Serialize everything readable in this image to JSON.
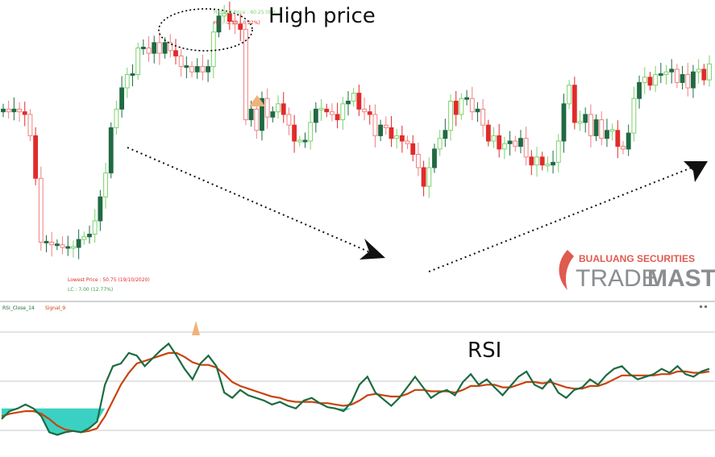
{
  "annotations": {
    "high_price": "High price",
    "rsi": "RSI",
    "high_price_detail": "Highest Price : 60.25 (09/…",
    "hc": "HC : -2.50 (-0.22%)",
    "lowest_price_detail": "Lowest Price : 50.75 (19/10/2020)",
    "lc": "LC : 7.00 (12.77%)"
  },
  "indicator_legend": {
    "rsi_label": "RSI_Close_14",
    "signal_label": "Signal_9"
  },
  "watermark": {
    "top": "BUALUANG SECURITIES",
    "main_a": "TRADE",
    "main_b": "MASTER"
  },
  "colors": {
    "bull_fill": "#1f6a43",
    "bull_hollow": "#7ad36a",
    "bear_fill": "#e22a2a",
    "bear_hollow": "#f08080",
    "rsi_line": "#1d6b40",
    "signal_line": "#c8440f",
    "oversold_fill": "#3bd1c2",
    "marker_triangle": "#f0b27a",
    "watermark_red": "#e05a4f",
    "watermark_gray": "#8a8d91"
  },
  "chart_data": [
    {
      "type": "candlestick",
      "title": "",
      "series": [
        {
          "name": "",
          "close": [
            0.62,
            0.61,
            0.62,
            0.61,
            0.6,
            0.52,
            0.36,
            0.12,
            0.12,
            0.11,
            0.11,
            0.1,
            0.1,
            0.1,
            0.13,
            0.14,
            0.15,
            0.2,
            0.29,
            0.38,
            0.55,
            0.62,
            0.7,
            0.75,
            0.75,
            0.85,
            0.85,
            0.83,
            0.87,
            0.83,
            0.87,
            0.84,
            0.82,
            0.78,
            0.78,
            0.76,
            0.78,
            0.76,
            0.78,
            0.91,
            0.97,
            0.98,
            0.95,
            0.94,
            0.92,
            0.58,
            0.62,
            0.54,
            0.66,
            0.59,
            0.61,
            0.64,
            0.6,
            0.56,
            0.5,
            0.5,
            0.5,
            0.57,
            0.62,
            0.62,
            0.61,
            0.6,
            0.58,
            0.64,
            0.65,
            0.68,
            0.62,
            0.61,
            0.6,
            0.52,
            0.56,
            0.55,
            0.51,
            0.52,
            0.5,
            0.49,
            0.45,
            0.4,
            0.33,
            0.4,
            0.47,
            0.51,
            0.54,
            0.65,
            0.6,
            0.66,
            0.66,
            0.61,
            0.62,
            0.56,
            0.5,
            0.52,
            0.47,
            0.49,
            0.5,
            0.48,
            0.51,
            0.44,
            0.41,
            0.44,
            0.41,
            0.41,
            0.42,
            0.5,
            0.64,
            0.71,
            0.57,
            0.57,
            0.6,
            0.52,
            0.58,
            0.51,
            0.54,
            0.54,
            0.48,
            0.47,
            0.53,
            0.66,
            0.72,
            0.74,
            0.71,
            0.75,
            0.75,
            0.76,
            0.77,
            0.72,
            0.75,
            0.7,
            0.76,
            0.77,
            0.73,
            0.79
          ],
          "color_note": "alternating filled / hollow candles"
        }
      ],
      "y_range": [
        0,
        1
      ],
      "grid": false
    },
    {
      "type": "line",
      "title": "",
      "series": [
        {
          "name": "RSI_Close_14",
          "values": [
            22,
            28,
            30,
            33,
            30,
            24,
            12,
            10,
            12,
            13,
            12,
            15,
            20,
            48,
            62,
            64,
            72,
            70,
            62,
            68,
            74,
            79,
            70,
            60,
            52,
            64,
            70,
            62,
            42,
            38,
            44,
            40,
            38,
            36,
            33,
            35,
            32,
            30,
            36,
            38,
            34,
            31,
            30,
            28,
            35,
            48,
            54,
            42,
            37,
            32,
            38,
            46,
            54,
            46,
            38,
            42,
            44,
            40,
            50,
            56,
            48,
            52,
            46,
            40,
            47,
            54,
            58,
            48,
            45,
            52,
            42,
            38,
            44,
            46,
            52,
            48,
            55,
            60,
            62,
            56,
            52,
            54,
            56,
            60,
            57,
            62,
            56,
            54,
            58,
            60
          ]
        },
        {
          "name": "Signal_9",
          "values": [
            24,
            26,
            27,
            28,
            28,
            26,
            22,
            17,
            14,
            13,
            12,
            13,
            15,
            24,
            36,
            48,
            57,
            64,
            66,
            68,
            70,
            72,
            72,
            69,
            65,
            63,
            63,
            61,
            56,
            50,
            47,
            45,
            43,
            41,
            39,
            38,
            36,
            35,
            35,
            35,
            34,
            34,
            33,
            32,
            33,
            36,
            40,
            41,
            40,
            39,
            39,
            41,
            44,
            44,
            43,
            43,
            43,
            42,
            44,
            47,
            47,
            48,
            48,
            46,
            46,
            48,
            50,
            50,
            49,
            50,
            48,
            46,
            45,
            45,
            47,
            47,
            49,
            52,
            55,
            55,
            55,
            55,
            55,
            56,
            56,
            58,
            58,
            57,
            57,
            58
          ]
        }
      ],
      "y_range": [
        0,
        100
      ],
      "grid": true
    }
  ]
}
